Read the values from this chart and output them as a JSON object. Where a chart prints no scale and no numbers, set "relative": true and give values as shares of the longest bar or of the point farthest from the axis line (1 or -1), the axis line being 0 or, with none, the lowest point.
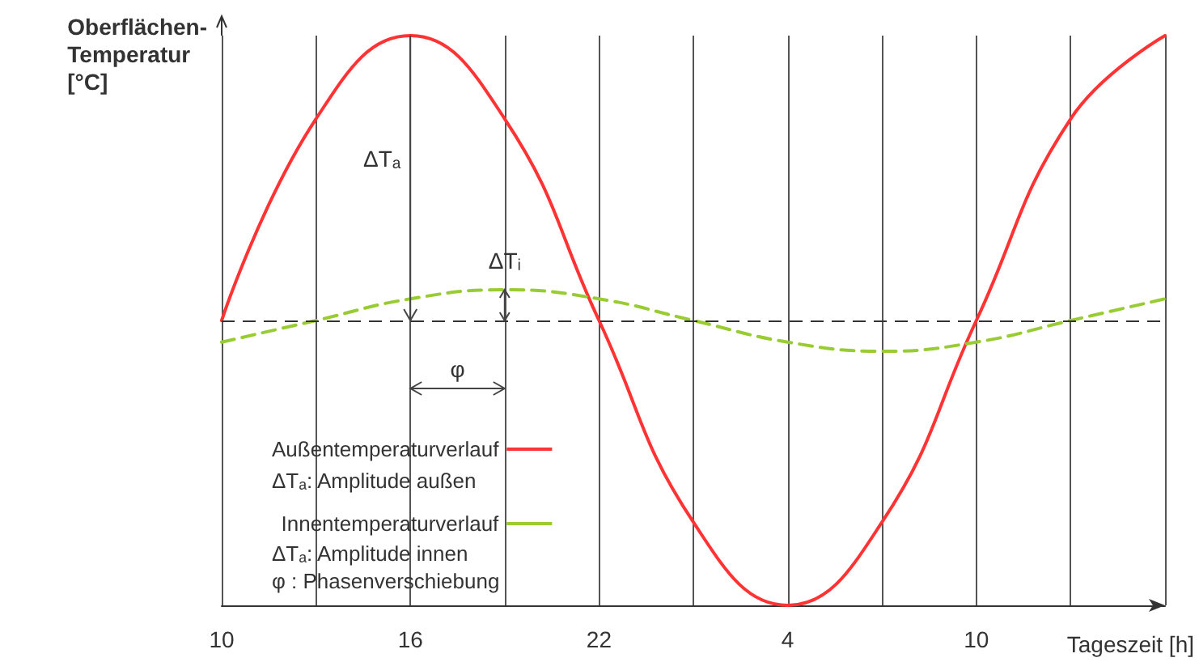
{
  "chart_data": {
    "type": "line",
    "relative": true,
    "xlabel": "Tageszeit [h]",
    "ylabel": "Oberflächen-\nTemperatur\n[°C]",
    "categories": [
      "10",
      null,
      "16",
      null,
      "22",
      null,
      "4",
      null,
      "10",
      null,
      null
    ],
    "series": [
      {
        "name": "Außentemperaturverlauf",
        "color": "#ff3333",
        "line_style": "solid",
        "values": [
          0.5,
          0.854,
          1,
          0.854,
          0.5,
          0.146,
          0,
          0.146,
          0.5,
          0.854,
          1
        ]
      },
      {
        "name": "Innentemperaturverlauf",
        "color": "#99cc33",
        "line_style": "dashed",
        "values": [
          0.462,
          0.5,
          0.538,
          0.554,
          0.538,
          0.5,
          0.462,
          0.446,
          0.462,
          0.5,
          0.538
        ]
      }
    ],
    "ref_lines": [
      {
        "axis": "y",
        "value": 0.5,
        "color": "#333333",
        "line_style": "dashed"
      }
    ],
    "annotations": [
      "ΔTₐ",
      "ΔTᵢ",
      "φ",
      "ΔTₐ: Amplitude außen",
      "ΔTₐ: Amplitude innen",
      "φ : Phasenverschiebung"
    ],
    "grid": "x",
    "legend": "bottom left",
    "marker": "none"
  }
}
